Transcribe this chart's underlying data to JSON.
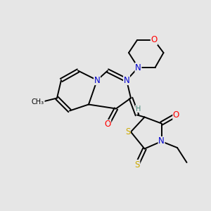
{
  "bg_color": "#e6e6e6",
  "atom_colors": {
    "C": "#000000",
    "N": "#0000cc",
    "O": "#ff0000",
    "S": "#ccaa00",
    "H": "#448877"
  },
  "figsize": [
    3.0,
    3.0
  ],
  "dpi": 100,
  "lw": 1.4,
  "fs": 8.5,
  "fs_small": 7.0
}
